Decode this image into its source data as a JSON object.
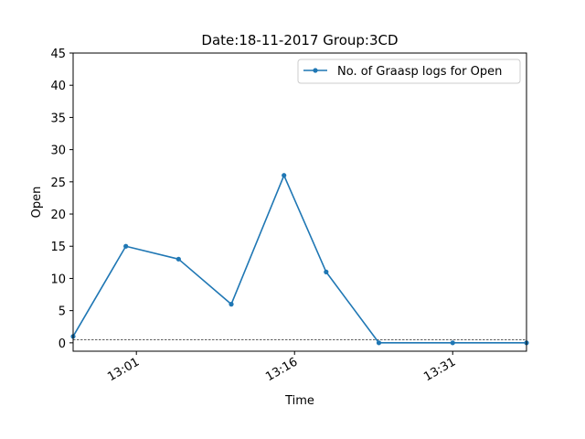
{
  "chart_data": {
    "type": "line",
    "title": "Date:18-11-2017  Group:3CD",
    "xlabel": "Time",
    "ylabel": "Open",
    "ylim": [
      -1.3,
      45
    ],
    "yticks": [
      0,
      5,
      10,
      15,
      20,
      25,
      30,
      35,
      40,
      45
    ],
    "xlim": [
      "12:55",
      "13:38"
    ],
    "xticks": [
      "13:01",
      "13:16",
      "13:31"
    ],
    "grid": false,
    "legend_position": "top-right",
    "reference_line_y": 0.5,
    "series": [
      {
        "name": "No. of Graasp logs for Open",
        "color": "#1f77b4",
        "points": [
          {
            "x": "12:55",
            "y": 1
          },
          {
            "x": "13:00",
            "y": 15
          },
          {
            "x": "13:05",
            "y": 13
          },
          {
            "x": "13:10",
            "y": 6
          },
          {
            "x": "13:15",
            "y": 26
          },
          {
            "x": "13:19",
            "y": 11
          },
          {
            "x": "13:24",
            "y": 0
          },
          {
            "x": "13:31",
            "y": 0
          },
          {
            "x": "13:38",
            "y": 0
          }
        ]
      }
    ]
  }
}
